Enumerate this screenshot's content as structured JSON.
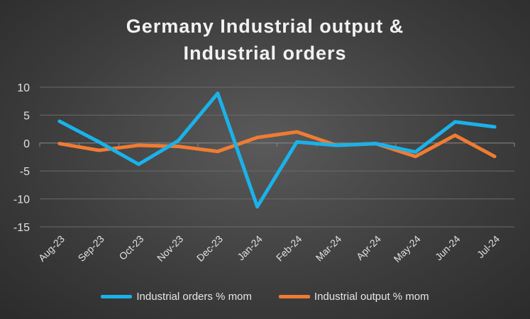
{
  "chart_data": {
    "type": "line",
    "title_line1": "Germany Industrial output &",
    "title_line2": "Industrial orders",
    "categories": [
      "Aug-23",
      "Sep-23",
      "Oct-23",
      "Nov-23",
      "Dec-23",
      "Jan-24",
      "Feb-24",
      "Mar-24",
      "Apr-24",
      "May-24",
      "Jun-24",
      "Jul-24"
    ],
    "series": [
      {
        "name": "Industrial orders % mom",
        "color": "#1ab2ea",
        "values": [
          3.9,
          0.2,
          -3.8,
          0.4,
          8.9,
          -11.4,
          0.2,
          -0.4,
          -0.1,
          -1.6,
          3.8,
          2.9
        ]
      },
      {
        "name": "Industrial output % mom",
        "color": "#ef7c32",
        "values": [
          -0.1,
          -1.3,
          -0.4,
          -0.6,
          -1.5,
          1.0,
          2.0,
          -0.4,
          -0.1,
          -2.4,
          1.4,
          -2.4
        ]
      }
    ],
    "ylim": [
      -15,
      10
    ],
    "yticks": [
      "10",
      "5",
      "0",
      "-5",
      "-10",
      "-15"
    ],
    "ytick_values": [
      10,
      5,
      0,
      -5,
      -10,
      -15
    ],
    "grid": true,
    "legend": "bottom"
  }
}
